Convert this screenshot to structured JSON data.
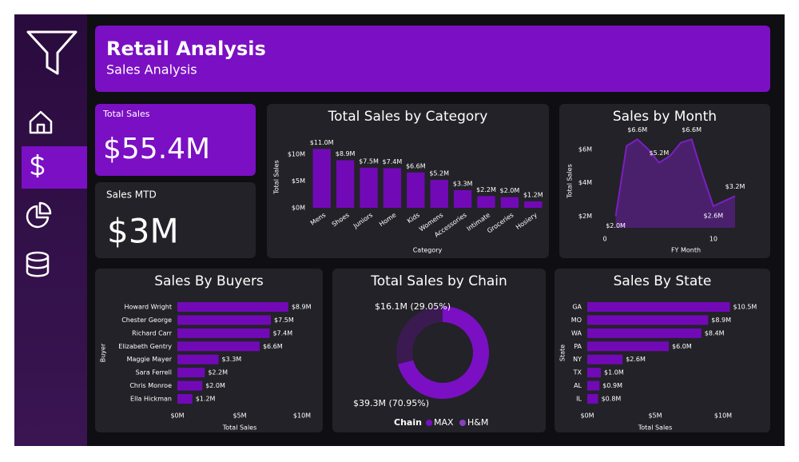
{
  "header": {
    "title": "Retail Analysis",
    "subtitle": "Sales Analysis"
  },
  "kpis": [
    {
      "label": "Total Sales",
      "value": "$55.4M"
    },
    {
      "label": "Sales MTD",
      "value": "$3M"
    }
  ],
  "chart_data": [
    {
      "type": "bar",
      "title": "Total Sales by Category",
      "x_label": "Category",
      "y_label": "Total Sales",
      "color": "#7209b7",
      "categories": [
        "Mens",
        "Shoes",
        "Juniors",
        "Home",
        "Kids",
        "Womens",
        "Accessories",
        "Intimate",
        "Groceries",
        "Hosiery"
      ],
      "values": [
        11.0,
        8.9,
        7.5,
        7.4,
        6.6,
        5.2,
        3.3,
        2.2,
        2.0,
        1.2
      ],
      "value_labels": [
        "$11.0M",
        "$8.9M",
        "$7.5M",
        "$7.4M",
        "$6.6M",
        "$5.2M",
        "$3.3M",
        "$2.2M",
        "$2.0M",
        "$1.2M"
      ],
      "ylim": [
        0,
        11.5
      ],
      "yticks": [
        {
          "value": 0,
          "label": "$0M"
        },
        {
          "value": 5,
          "label": "$5M"
        },
        {
          "value": 10,
          "label": "$10M"
        }
      ],
      "grid": false
    },
    {
      "type": "line",
      "title": "Sales by Month",
      "x_label": "FY Month",
      "y_label": "Total Sales",
      "color": "#7a1fc0",
      "x": [
        1,
        2,
        3,
        4,
        5,
        6,
        7,
        8,
        9,
        10,
        11,
        12
      ],
      "values": [
        2.0,
        6.2,
        6.6,
        6.0,
        5.2,
        5.6,
        6.4,
        6.6,
        4.5,
        2.6,
        2.9,
        3.2
      ],
      "value_labels": [
        "$2.0M",
        null,
        "$6.6M",
        null,
        "$5.2M",
        null,
        null,
        "$6.6M",
        null,
        "$2.6M",
        null,
        "$3.2M"
      ],
      "xlim": [
        0,
        12
      ],
      "xticks": [
        0,
        10
      ],
      "ylim": [
        1.3,
        6.9
      ],
      "yticks": [
        {
          "value": 2,
          "label": "$2M"
        },
        {
          "value": 4,
          "label": "$4M"
        },
        {
          "value": 6,
          "label": "$6M"
        }
      ],
      "grid": false
    },
    {
      "type": "hbar",
      "title": "Sales By Buyers",
      "x_label": "Total Sales",
      "y_label": "Buyer",
      "color": "#7209b7",
      "categories": [
        "Howard Wright",
        "Chester George",
        "Richard Carr",
        "Elizabeth Gentry",
        "Maggie Mayer",
        "Sara Ferrell",
        "Chris Monroe",
        "Ella Hickman"
      ],
      "values": [
        8.9,
        7.5,
        7.4,
        6.6,
        3.3,
        2.2,
        2.0,
        1.2
      ],
      "value_labels": [
        "$8.9M",
        "$7.5M",
        "$7.4M",
        "$6.6M",
        "$3.3M",
        "$2.2M",
        "$2.0M",
        "$1.2M"
      ],
      "xlim": [
        0,
        10
      ],
      "xticks": [
        {
          "value": 0,
          "label": "$0M"
        },
        {
          "value": 5,
          "label": "$5M"
        },
        {
          "value": 10,
          "label": "$10M"
        }
      ],
      "grid": false
    },
    {
      "type": "pie",
      "title": "Total Sales by Chain",
      "legend_title": "Chain",
      "categories": [
        "MAX",
        "H&M"
      ],
      "values": [
        39.3,
        16.1
      ],
      "colors": [
        "#7b0fc4",
        "#3b1a52"
      ],
      "value_labels": [
        "$39.3M (70.95%)",
        "$16.1M (29.05%)"
      ]
    },
    {
      "type": "hbar",
      "title": "Sales By State",
      "x_label": "Total Sales",
      "y_label": "State",
      "color": "#7209b7",
      "categories": [
        "GA",
        "MO",
        "WA",
        "PA",
        "NY",
        "TX",
        "AL",
        "IL"
      ],
      "values": [
        10.5,
        8.9,
        8.4,
        6.0,
        2.6,
        1.0,
        0.9,
        0.8
      ],
      "value_labels": [
        "$10.5M",
        "$8.9M",
        "$8.4M",
        "$6.0M",
        "$2.6M",
        "$1.0M",
        "$0.9M",
        "$0.8M"
      ],
      "xlim": [
        0,
        10
      ],
      "xticks": [
        {
          "value": 0,
          "label": "$0M"
        },
        {
          "value": 5,
          "label": "$5M"
        },
        {
          "value": 10,
          "label": "$10M"
        }
      ],
      "grid": false
    }
  ]
}
